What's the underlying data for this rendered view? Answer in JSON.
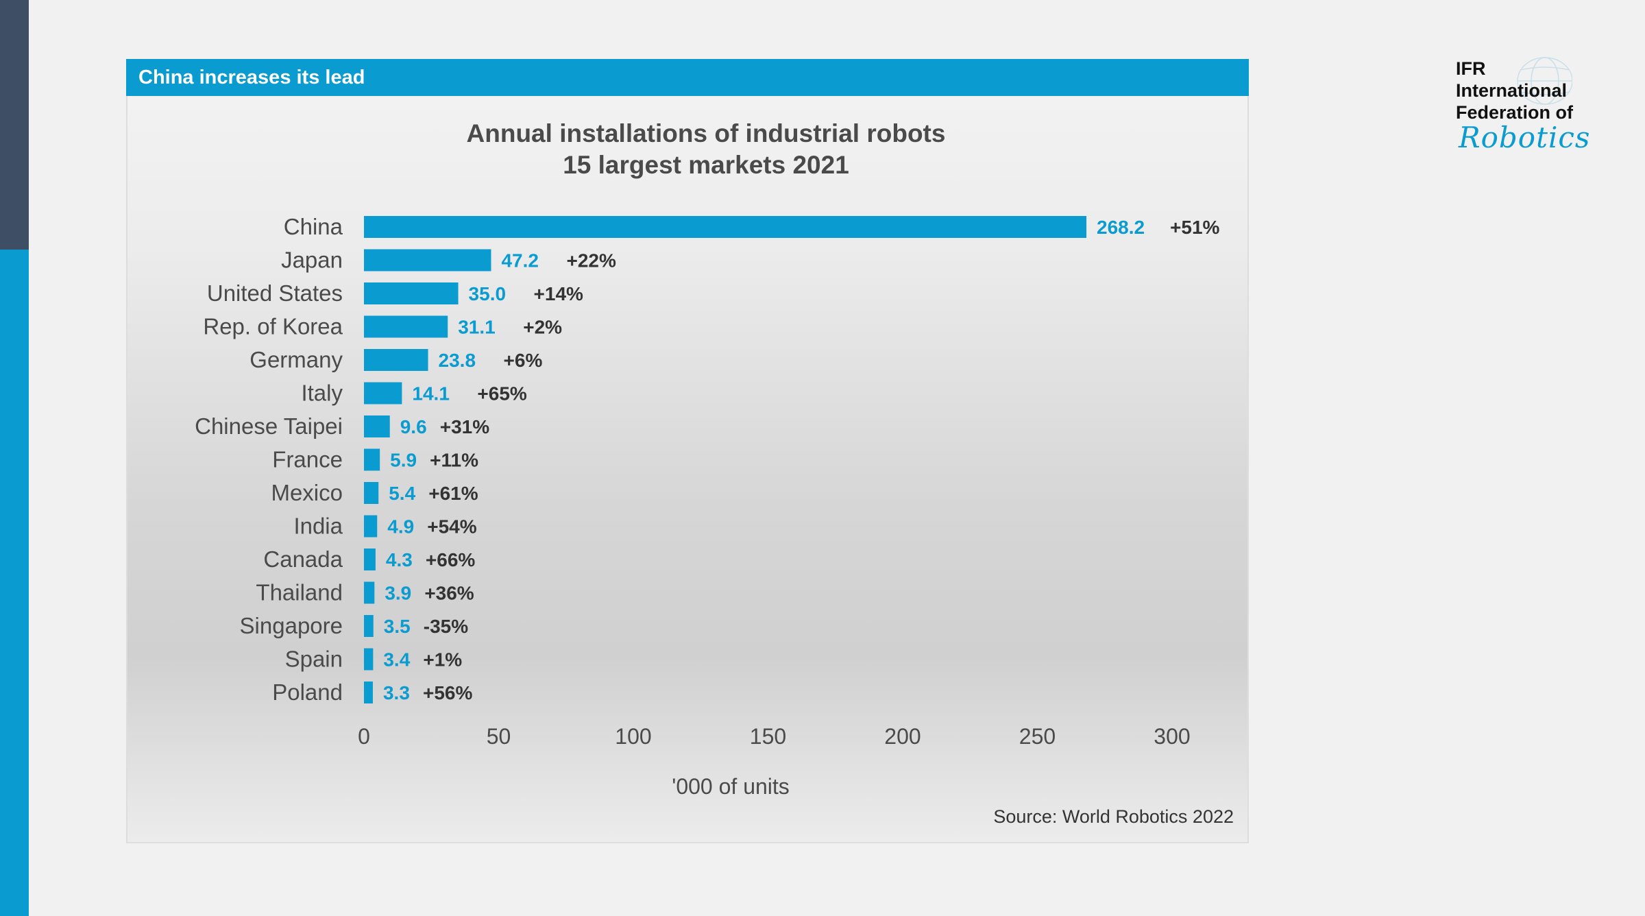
{
  "header": {
    "title": "China increases its lead"
  },
  "logo": {
    "line1": "IFR",
    "line2": "International",
    "line3": "Federation of",
    "script": "Robotics"
  },
  "source": "Source: World Robotics 2022",
  "colors": {
    "accent": "#0a9bd0",
    "sidebar_dark": "#3e4e64",
    "text": "#4a4a4a"
  },
  "chart_data": {
    "type": "bar",
    "orientation": "horizontal",
    "title": "Annual installations of industrial robots",
    "subtitle": "15 largest markets 2021",
    "xlabel": "'000 of units",
    "ylabel": "",
    "xlim": [
      0,
      300
    ],
    "xticks": [
      0,
      50,
      100,
      150,
      200,
      250,
      300
    ],
    "grid": false,
    "categories": [
      "China",
      "Japan",
      "United States",
      "Rep. of Korea",
      "Germany",
      "Italy",
      "Chinese Taipei",
      "France",
      "Mexico",
      "India",
      "Canada",
      "Thailand",
      "Singapore",
      "Spain",
      "Poland"
    ],
    "values": [
      268.2,
      47.2,
      35.0,
      31.1,
      23.8,
      14.1,
      9.6,
      5.9,
      5.4,
      4.9,
      4.3,
      3.9,
      3.5,
      3.4,
      3.3
    ],
    "value_labels": [
      "268.2",
      "47.2",
      "35.0",
      "31.1",
      "23.8",
      "14.1",
      "9.6",
      "5.9",
      "5.4",
      "4.9",
      "4.3",
      "3.9",
      "3.5",
      "3.4",
      "3.3"
    ],
    "growth_labels": [
      "+51%",
      "+22%",
      "+14%",
      "+2%",
      "+6%",
      "+65%",
      "+31%",
      "+11%",
      "+61%",
      "+54%",
      "+66%",
      "+36%",
      "-35%",
      "+1%",
      "+56%"
    ]
  }
}
